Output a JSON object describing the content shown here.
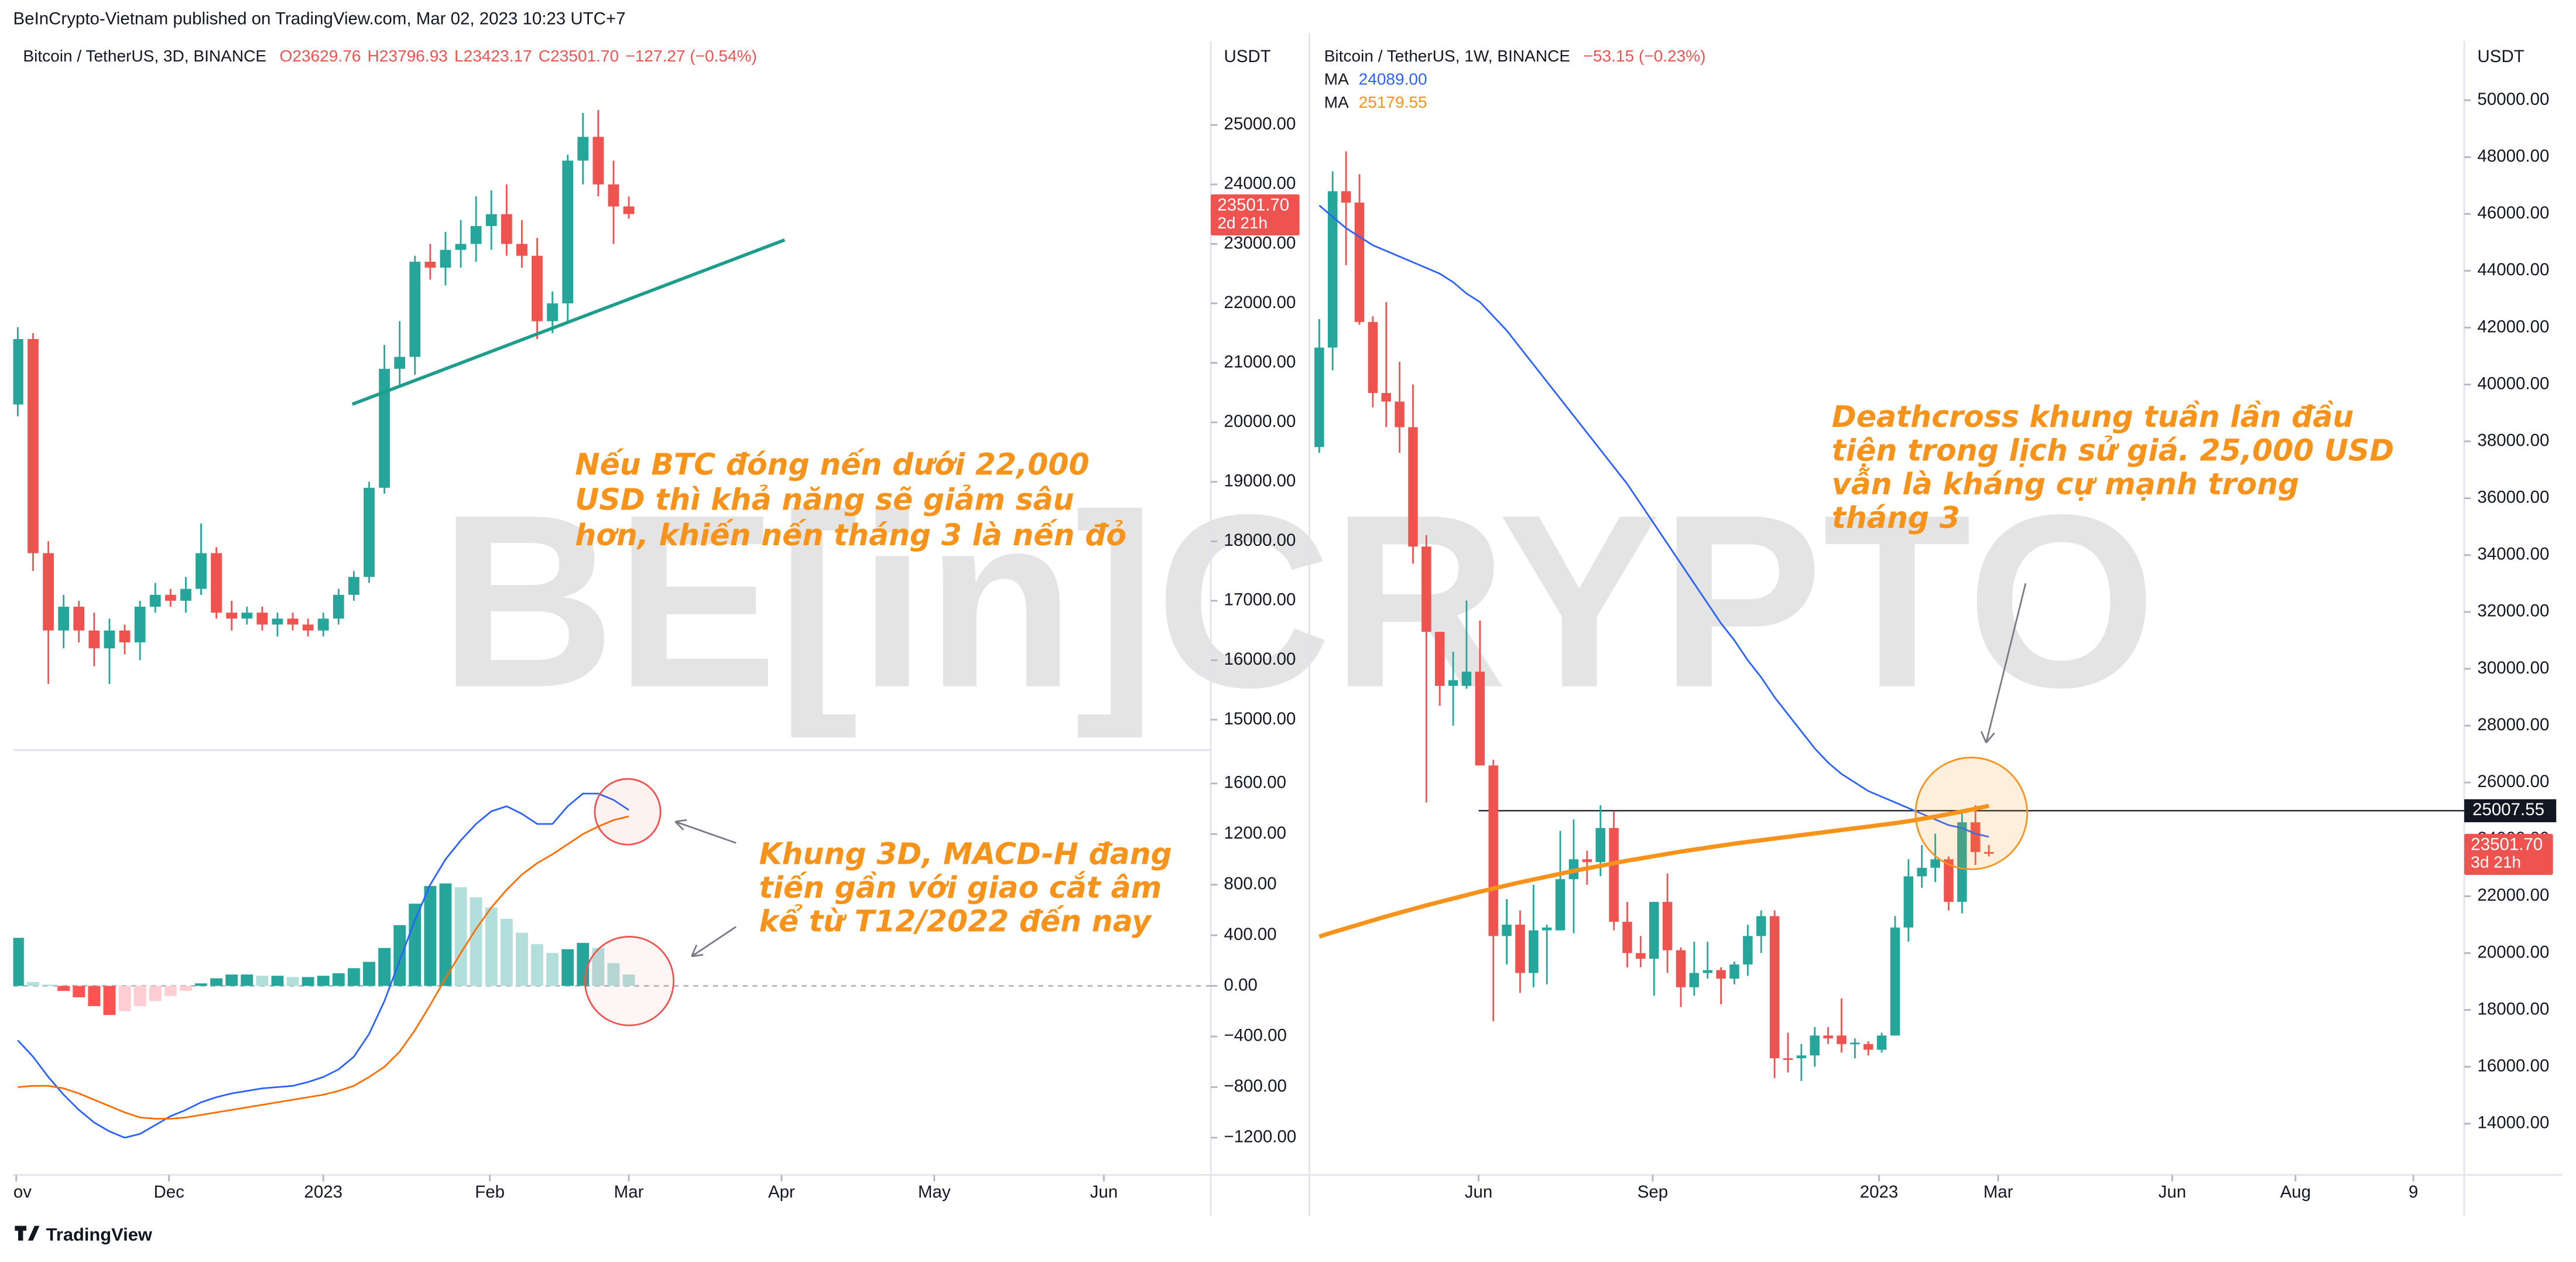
{
  "header": {
    "published": "BeInCrypto-Vietnam published on TradingView.com, Mar 02, 2023 10:23 UTC+7"
  },
  "footer": {
    "brand": "TradingView"
  },
  "watermark": "BE[in]CRYPTO",
  "chart_data": [
    {
      "type": "candlestick",
      "title": "Bitcoin / TetherUS, 3D, BINANCE",
      "legend_values": [
        "O23629.76",
        "H23796.93",
        "L23423.17",
        "C23501.70",
        "−127.27 (−0.54%)"
      ],
      "unit": "USDT",
      "grid": false,
      "open": [
        20300,
        21400,
        17800,
        16500,
        16900,
        16500,
        16200,
        16500,
        16300,
        16900,
        17100,
        17000,
        17200,
        17800,
        16800,
        16700,
        16800,
        16600,
        16700,
        16600,
        16500,
        16700,
        17100,
        17400,
        18900,
        20900,
        21100,
        22700,
        22600,
        22900,
        23000,
        23300,
        23500,
        23000,
        22800,
        21700,
        22000,
        24400,
        24800,
        24000,
        23629.76
      ],
      "high": [
        21600,
        21500,
        18000,
        17100,
        17000,
        16800,
        16700,
        16600,
        17000,
        17300,
        17200,
        17400,
        18300,
        17900,
        17000,
        16900,
        16900,
        16800,
        16800,
        16700,
        16800,
        17200,
        17500,
        19000,
        21300,
        21700,
        22800,
        23000,
        23200,
        23400,
        23800,
        23900,
        24000,
        23400,
        23100,
        22200,
        24500,
        25200,
        25250,
        24400,
        23796.93
      ],
      "low": [
        20100,
        17500,
        15600,
        16200,
        16300,
        15900,
        15600,
        16100,
        16000,
        16800,
        16900,
        16800,
        17100,
        16700,
        16500,
        16600,
        16500,
        16400,
        16500,
        16400,
        16400,
        16600,
        17000,
        17300,
        18800,
        20600,
        20800,
        22400,
        22300,
        22600,
        22700,
        22900,
        22800,
        22600,
        21400,
        21500,
        21700,
        24000,
        23800,
        23000,
        23423.17
      ],
      "close": [
        21400,
        17800,
        16500,
        16900,
        16500,
        16200,
        16500,
        16300,
        16900,
        17100,
        17000,
        17200,
        17800,
        16800,
        16700,
        16800,
        16600,
        16700,
        16600,
        16500,
        16700,
        17100,
        17400,
        18900,
        20900,
        21100,
        22700,
        22600,
        22900,
        23000,
        23300,
        23500,
        23000,
        22800,
        21700,
        22000,
        24400,
        24800,
        24000,
        23628.97,
        23501.7
      ],
      "up_color": "#26a69a",
      "down_color": "#ef5350",
      "xlim": [
        -0.3,
        78.1
      ],
      "xticks": [
        {
          "value": -0.1,
          "label": "Nov"
        },
        {
          "value": 9.9,
          "label": "Dec"
        },
        {
          "value": 20.0,
          "label": "2023"
        },
        {
          "value": 30.9,
          "label": "Feb"
        },
        {
          "value": 40.0,
          "label": "Mar"
        },
        {
          "value": 50.0,
          "label": "Apr"
        },
        {
          "value": 60.0,
          "label": "May"
        },
        {
          "value": 71.1,
          "label": "Jun"
        }
      ],
      "ylim": [
        14530,
        26410
      ],
      "yticks": [
        {
          "value": 15000,
          "label": "15000.00"
        },
        {
          "value": 16000,
          "label": "16000.00"
        },
        {
          "value": 17000,
          "label": "17000.00"
        },
        {
          "value": 18000,
          "label": "18000.00"
        },
        {
          "value": 19000,
          "label": "19000.00"
        },
        {
          "value": 20000,
          "label": "20000.00"
        },
        {
          "value": 21000,
          "label": "21000.00"
        },
        {
          "value": 22000,
          "label": "22000.00"
        },
        {
          "value": 23000,
          "label": "23000.00"
        },
        {
          "value": 24000,
          "label": "24000.00"
        },
        {
          "value": 25000,
          "label": "25000.00"
        }
      ],
      "last_price": {
        "label": "23501.70",
        "countdown": "2d 21h"
      },
      "trendline": {
        "color": "#1e9c8c",
        "x": [
          21.9,
          50.2
        ],
        "y": [
          20304,
          23066
        ]
      },
      "annotation": [
        "Nếu BTC đóng nến dưới 22,000",
        "USD thì khả năng sẽ giảm sâu",
        "hơn, khiến nến tháng 3 là nến đỏ"
      ]
    },
    {
      "type": "macd",
      "grid": false,
      "histogram": [
        380,
        30,
        10,
        -40,
        -90,
        -160,
        -230,
        -200,
        -160,
        -120,
        -80,
        -40,
        20,
        60,
        90,
        90,
        80,
        80,
        70,
        70,
        80,
        100,
        140,
        190,
        300,
        480,
        650,
        790,
        810,
        780,
        700,
        620,
        530,
        420,
        330,
        260,
        290,
        340,
        300,
        180,
        90
      ],
      "macd": [
        -430,
        -560,
        -720,
        -860,
        -980,
        -1080,
        -1150,
        -1200,
        -1170,
        -1100,
        -1030,
        -980,
        -920,
        -880,
        -850,
        -830,
        -810,
        -800,
        -790,
        -760,
        -720,
        -660,
        -560,
        -380,
        -120,
        200,
        520,
        800,
        1000,
        1150,
        1280,
        1380,
        1420,
        1360,
        1280,
        1280,
        1420,
        1520,
        1520,
        1470,
        1390
      ],
      "signal": [
        -800,
        -790,
        -790,
        -810,
        -850,
        -900,
        -950,
        -1000,
        -1040,
        -1050,
        -1050,
        -1040,
        -1020,
        -1000,
        -980,
        -960,
        -940,
        -920,
        -900,
        -880,
        -860,
        -830,
        -790,
        -720,
        -640,
        -520,
        -350,
        -150,
        60,
        260,
        450,
        620,
        760,
        880,
        970,
        1040,
        1120,
        1200,
        1260,
        1310,
        1340
      ],
      "macd_color": "#2962ff",
      "signal_color": "#ff6d00",
      "histogram_colors": {
        "grow_up": "#26a69a",
        "fall_up": "#b2dfdb",
        "fall_down": "#ff5252",
        "rise_down": "#ffcdd2"
      },
      "xlim": [
        -0.3,
        78.1
      ],
      "ylim": [
        -1494,
        1844
      ],
      "yticks": [
        {
          "value": 1600,
          "label": "1600.00"
        },
        {
          "value": 1200,
          "label": "1200.00"
        },
        {
          "value": 800,
          "label": "800.00"
        },
        {
          "value": 400,
          "label": "400.00"
        },
        {
          "value": 0,
          "label": "0.00"
        },
        {
          "value": -400,
          "label": "−400.00"
        },
        {
          "value": -800,
          "label": "−800.00"
        },
        {
          "value": -1200,
          "label": "−1200.00"
        }
      ],
      "annotation": [
        "Khung 3D, MACD-H đang",
        "tiến gần với giao cắt âm",
        "kể từ T12/2022 đến nay"
      ]
    },
    {
      "type": "candlestick",
      "title": "Bitcoin / TetherUS, 1W, BINANCE",
      "legend_values": [
        "−53.15 (−0.23%)"
      ],
      "unit": "USDT",
      "grid": false,
      "open": [
        37800,
        41300,
        46800,
        46400,
        42200,
        39700,
        39400,
        38500,
        34300,
        31300,
        29400,
        29400,
        29900,
        26600,
        20600,
        21000,
        19300,
        20800,
        20800,
        22600,
        23300,
        23200,
        24400,
        21100,
        20000,
        19800,
        21800,
        20100,
        18800,
        19300,
        19400,
        19100,
        19600,
        20600,
        21300,
        16300,
        16300,
        16400,
        17100,
        17100,
        16800,
        16800,
        16600,
        17100,
        20900,
        22700,
        23000,
        23300,
        21800,
        24600,
        23554.85
      ],
      "high": [
        42300,
        47500,
        48200,
        47400,
        42400,
        42900,
        40800,
        40000,
        34700,
        31300,
        30600,
        32400,
        31700,
        26800,
        21900,
        21500,
        22400,
        21000,
        24300,
        24700,
        23600,
        25200,
        25000,
        21800,
        20600,
        21800,
        22800,
        20200,
        20400,
        20400,
        19500,
        19700,
        21000,
        21500,
        21500,
        17200,
        16800,
        17400,
        17400,
        18400,
        17000,
        16900,
        17200,
        21300,
        23300,
        23800,
        24200,
        23400,
        24900,
        25200,
        23800
      ],
      "low": [
        37600,
        40500,
        44200,
        42100,
        39200,
        38500,
        37600,
        33700,
        25300,
        28700,
        28000,
        29300,
        26600,
        17600,
        19600,
        18600,
        18800,
        18900,
        20800,
        20700,
        22400,
        22700,
        20800,
        19500,
        19500,
        18500,
        19300,
        18100,
        18500,
        19100,
        18200,
        18900,
        19200,
        20000,
        15600,
        15800,
        15500,
        16000,
        16800,
        16500,
        16300,
        16400,
        16500,
        17100,
        20400,
        22300,
        22500,
        21500,
        21400,
        23100,
        23400
      ],
      "close": [
        41300,
        46800,
        46400,
        42200,
        39700,
        39400,
        38500,
        34300,
        31300,
        29400,
        29600,
        29900,
        26600,
        20600,
        21000,
        19300,
        20800,
        20900,
        22600,
        23300,
        23200,
        24400,
        21100,
        20000,
        19800,
        21800,
        20100,
        18800,
        19300,
        19400,
        19100,
        19600,
        20600,
        21300,
        16300,
        16250,
        16400,
        17100,
        17000,
        16800,
        16850,
        16600,
        17100,
        20900,
        22700,
        23000,
        23300,
        21800,
        24600,
        23554.85,
        23501.7
      ],
      "up_color": "#26a69a",
      "down_color": "#ef5350",
      "moving_averages": [
        {
          "name": "MA",
          "value_label": "24089.00",
          "color": "#2962ff",
          "values": [
            46300,
            45900,
            45500,
            45200,
            44900,
            44700,
            44500,
            44300,
            44100,
            43900,
            43600,
            43200,
            42900,
            42400,
            41900,
            41300,
            40700,
            40100,
            39500,
            38900,
            38300,
            37700,
            37100,
            36500,
            35800,
            35100,
            34400,
            33700,
            33000,
            32300,
            31600,
            31000,
            30300,
            29700,
            29000,
            28400,
            27800,
            27200,
            26700,
            26300,
            26000,
            25700,
            25500,
            25300,
            25100,
            24900,
            24700,
            24500,
            24400,
            24200,
            24089
          ]
        },
        {
          "name": "MA",
          "value_label": "25179.55",
          "color": "#f7931a",
          "values": [
            20580,
            20730,
            20870,
            21010,
            21150,
            21290,
            21420,
            21550,
            21680,
            21800,
            21920,
            22040,
            22160,
            22270,
            22380,
            22490,
            22590,
            22690,
            22790,
            22890,
            22980,
            23070,
            23160,
            23250,
            23330,
            23410,
            23490,
            23570,
            23640,
            23710,
            23780,
            23850,
            23910,
            23970,
            24030,
            24090,
            24150,
            24210,
            24270,
            24330,
            24390,
            24450,
            24510,
            24570,
            24640,
            24720,
            24800,
            24890,
            24980,
            25080,
            25179.55
          ]
        }
      ],
      "xlim": [
        -0.37,
        85.5
      ],
      "xticks": [
        {
          "value": 11.9,
          "label": "Jun"
        },
        {
          "value": 24.9,
          "label": "Sep"
        },
        {
          "value": 41.8,
          "label": "2023"
        },
        {
          "value": 50.7,
          "label": "Mar"
        },
        {
          "value": 63.7,
          "label": "Jun"
        },
        {
          "value": 72.9,
          "label": "Aug"
        },
        {
          "value": 81.7,
          "label": "9"
        }
      ],
      "ylim": [
        12197,
        52081
      ],
      "yticks": [
        {
          "value": 14000,
          "label": "14000.00"
        },
        {
          "value": 16000,
          "label": "16000.00"
        },
        {
          "value": 18000,
          "label": "18000.00"
        },
        {
          "value": 20000,
          "label": "20000.00"
        },
        {
          "value": 22000,
          "label": "22000.00"
        },
        {
          "value": 24000,
          "label": "24000.00"
        },
        {
          "value": 26000,
          "label": "26000.00"
        },
        {
          "value": 28000,
          "label": "28000.00"
        },
        {
          "value": 30000,
          "label": "30000.00"
        },
        {
          "value": 32000,
          "label": "32000.00"
        },
        {
          "value": 34000,
          "label": "34000.00"
        },
        {
          "value": 36000,
          "label": "36000.00"
        },
        {
          "value": 38000,
          "label": "38000.00"
        },
        {
          "value": 40000,
          "label": "40000.00"
        },
        {
          "value": 42000,
          "label": "42000.00"
        },
        {
          "value": 44000,
          "label": "44000.00"
        },
        {
          "value": 46000,
          "label": "46000.00"
        },
        {
          "value": 48000,
          "label": "48000.00"
        },
        {
          "value": 50000,
          "label": "50000.00"
        }
      ],
      "hline": {
        "value": 25007.55,
        "label": "25007.55",
        "color": "#131722"
      },
      "last_price": {
        "label": "23501.70",
        "countdown": "3d 21h"
      },
      "annotation": [
        "Deathcross khung tuần lần đầu",
        "tiện trong lịch sử giá. 25,000 USD",
        "vẫn là kháng cự mạnh trong",
        "tháng 3"
      ]
    }
  ]
}
